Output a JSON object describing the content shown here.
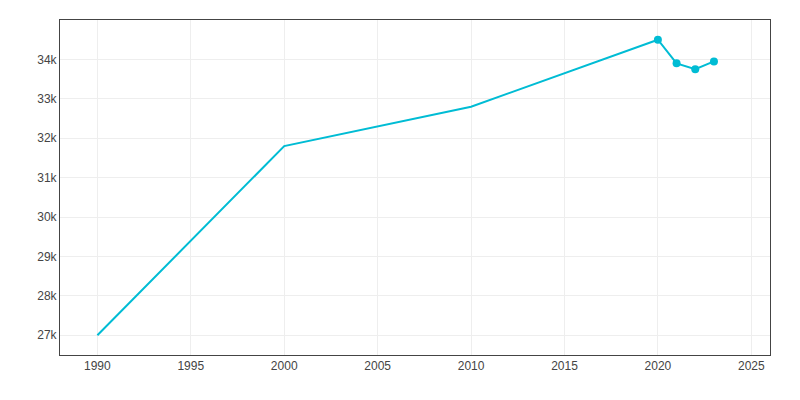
{
  "chart_data": {
    "type": "line",
    "x": [
      1990,
      2000,
      2010,
      2020,
      2021,
      2022,
      2023
    ],
    "series": [
      {
        "type": "line",
        "color": "#00bcd4",
        "values": [
          27000,
          31800,
          32800,
          34500,
          33900,
          33750,
          33950
        ]
      },
      {
        "type": "scatter",
        "color": "#00bcd4",
        "marker": "circle",
        "values": [
          null,
          null,
          null,
          34500,
          33900,
          33750,
          33950
        ]
      }
    ],
    "xlim": [
      1988,
      2026
    ],
    "xticks": [
      1990,
      1995,
      2000,
      2005,
      2010,
      2015,
      2020,
      2025
    ],
    "ylim": [
      26500,
      35000
    ],
    "yticks": [
      {
        "value": 27000,
        "label": "27k"
      },
      {
        "value": 28000,
        "label": "28k"
      },
      {
        "value": 29000,
        "label": "29k"
      },
      {
        "value": 30000,
        "label": "30k"
      },
      {
        "value": 31000,
        "label": "31k"
      },
      {
        "value": 32000,
        "label": "32k"
      },
      {
        "value": 33000,
        "label": "33k"
      },
      {
        "value": 34000,
        "label": "34k"
      }
    ],
    "grid": true
  }
}
